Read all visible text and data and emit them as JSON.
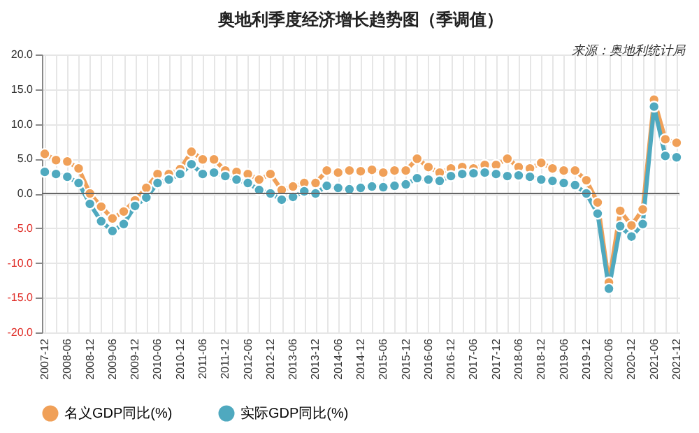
{
  "chart_data": {
    "type": "line",
    "title": "奥地利季度经济增长趋势图（季调值）",
    "annotations": [
      "来源：奥地利统计局"
    ],
    "categories": [
      "2007-12",
      null,
      "2008-06",
      null,
      "2008-12",
      null,
      "2009-06",
      null,
      "2009-12",
      null,
      "2010-06",
      null,
      "2010-12",
      null,
      "2011-06",
      null,
      "2011-12",
      null,
      "2012-06",
      null,
      "2012-12",
      null,
      "2013-06",
      null,
      "2013-12",
      null,
      "2014-06",
      null,
      "2014-12",
      null,
      "2015-06",
      null,
      "2015-12",
      null,
      "2016-06",
      null,
      "2016-12",
      null,
      "2017-06",
      null,
      "2017-12",
      null,
      "2018-06",
      null,
      "2018-12",
      null,
      "2019-06",
      null,
      "2019-12",
      null,
      "2020-06",
      null,
      "2020-12",
      null,
      "2021-06",
      null,
      "2021-12"
    ],
    "series": [
      {
        "name": "名义GDP同比(%)",
        "color": "#f0a058",
        "values": [
          5.7,
          4.8,
          4.6,
          3.6,
          0.0,
          -1.9,
          -3.6,
          -2.6,
          -1.0,
          0.8,
          2.8,
          2.8,
          3.5,
          6.0,
          4.9,
          4.9,
          3.3,
          3.1,
          2.8,
          2.0,
          2.8,
          0.5,
          1.0,
          1.5,
          1.5,
          3.3,
          3.0,
          3.3,
          3.2,
          3.4,
          3.0,
          3.3,
          3.3,
          5.0,
          3.8,
          3.0,
          3.6,
          3.8,
          3.6,
          4.1,
          4.1,
          5.0,
          3.8,
          3.6,
          4.4,
          3.6,
          3.3,
          3.3,
          1.9,
          -1.3,
          -12.8,
          -2.5,
          -4.6,
          -2.3,
          13.5,
          7.8,
          7.3
        ]
      },
      {
        "name": "实际GDP同比(%)",
        "color": "#4fa9bf",
        "values": [
          3.1,
          2.8,
          2.4,
          1.5,
          -1.5,
          -4.0,
          -5.4,
          -4.4,
          -1.8,
          -0.6,
          1.5,
          2.0,
          2.8,
          4.2,
          2.8,
          3.0,
          2.5,
          2.0,
          1.5,
          0.5,
          0.0,
          -0.9,
          -0.5,
          0.3,
          0.0,
          1.1,
          0.8,
          0.6,
          0.8,
          1.0,
          0.9,
          1.1,
          1.3,
          2.2,
          2.0,
          1.8,
          2.5,
          2.8,
          2.9,
          3.0,
          2.8,
          2.5,
          2.6,
          2.4,
          2.0,
          1.8,
          1.5,
          1.2,
          0.0,
          -2.9,
          -13.7,
          -4.7,
          -6.2,
          -4.4,
          12.5,
          5.4,
          5.2
        ]
      }
    ],
    "ylim": [
      -20,
      20
    ],
    "yticks": [
      {
        "value": -20,
        "label": "-20.0"
      },
      {
        "value": -15,
        "label": "-15.0"
      },
      {
        "value": -10,
        "label": "-10.0"
      },
      {
        "value": -5,
        "label": "-5.0"
      },
      {
        "value": 0,
        "label": "0.0"
      },
      {
        "value": 5,
        "label": "5.0"
      },
      {
        "value": 10,
        "label": "10.0"
      },
      {
        "value": 15,
        "label": "15.0"
      },
      {
        "value": 20,
        "label": "20.0"
      }
    ],
    "grid": true,
    "legend": "bottom",
    "marker": "circle"
  }
}
